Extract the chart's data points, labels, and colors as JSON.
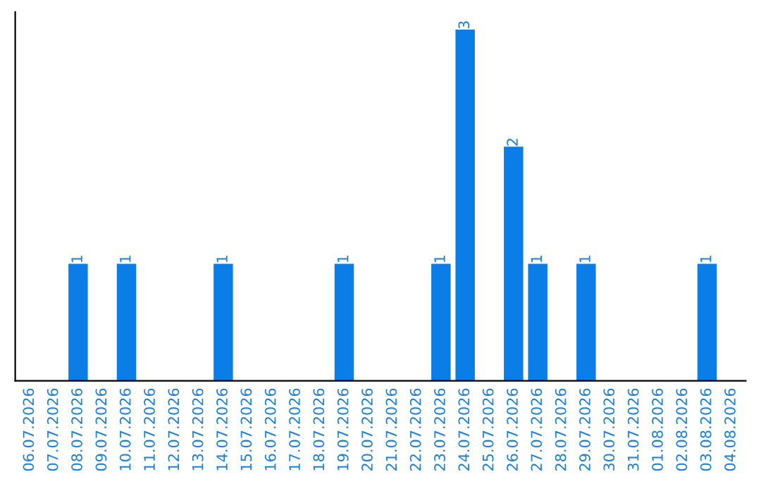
{
  "chart_data": {
    "type": "bar",
    "categories": [
      "06.07.2026",
      "07.07.2026",
      "08.07.2026",
      "09.07.2026",
      "10.07.2026",
      "11.07.2026",
      "12.07.2026",
      "13.07.2026",
      "14.07.2026",
      "15.07.2026",
      "16.07.2026",
      "17.07.2026",
      "18.07.2026",
      "19.07.2026",
      "20.07.2026",
      "21.07.2026",
      "22.07.2026",
      "23.07.2026",
      "24.07.2026",
      "25.07.2026",
      "26.07.2026",
      "27.07.2026",
      "28.07.2026",
      "29.07.2026",
      "30.07.2026",
      "31.07.2026",
      "01.08.2026",
      "02.08.2026",
      "03.08.2026",
      "04.08.2026"
    ],
    "values": [
      0,
      0,
      1,
      0,
      1,
      0,
      0,
      0,
      1,
      0,
      0,
      0,
      0,
      1,
      0,
      0,
      0,
      1,
      3,
      0,
      2,
      1,
      0,
      1,
      0,
      0,
      0,
      0,
      1,
      0
    ],
    "value_labels": [
      null,
      null,
      "1",
      null,
      "1",
      null,
      null,
      null,
      "1",
      null,
      null,
      null,
      null,
      "1",
      null,
      null,
      null,
      "1",
      "3",
      null,
      "2",
      "1",
      null,
      "1",
      null,
      null,
      null,
      null,
      "1",
      null
    ],
    "color": "#0a7de6",
    "tick_labels": "x",
    "grid": false
  }
}
